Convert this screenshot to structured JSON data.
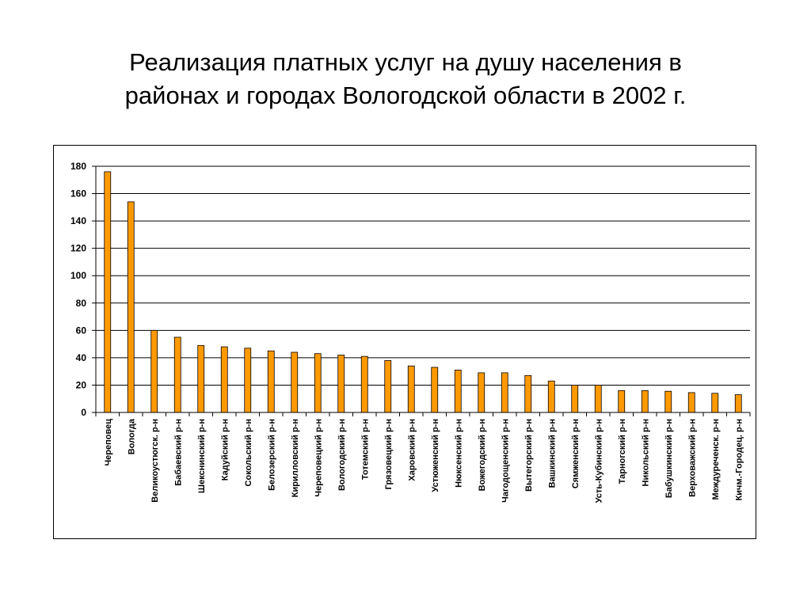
{
  "slide": {
    "title_line1": "Реализация платных услуг на душу населения в",
    "title_line2": "районах и городах Вологодской области в 2002 г."
  },
  "colors": {
    "bar_fill": "#FF9900",
    "bar_stroke": "#000000",
    "gridline": "#000000"
  },
  "chart_data": {
    "type": "bar",
    "title": "",
    "xlabel": "",
    "ylabel": "",
    "ylim": [
      0,
      180
    ],
    "yticks": [
      0,
      20,
      40,
      60,
      80,
      100,
      120,
      140,
      160,
      180
    ],
    "grid": true,
    "legend": "none",
    "categories": [
      "Череповец",
      "Вологда",
      "Великоустюгск. р-н",
      "Бабаевский р-н",
      "Шекснинский р-н",
      "Кадуйский р-н",
      "Сокольский р-н",
      "Белозерский р-н",
      "Кирилловский р-н",
      "Череповецкий р-н",
      "Вологодский р-н",
      "Тотемский р-н",
      "Грязовецкий р-н",
      "Харовский р-н",
      "Устюженский р-н",
      "Нюксенский р-н",
      "Вожегодский р-н",
      "Чагодощенский р-н",
      "Вытегорский р-н",
      "Вашкинский р-н",
      "Сямженский р-н",
      "Усть-Кубинский р-н",
      "Тарногский р-н",
      "Никольский р-н",
      "Бабушкинский р-н",
      "Верховажский р-н",
      "Междуреченск. р-н",
      "Кичм.-Городец. р-н"
    ],
    "values": [
      176,
      154,
      60,
      55,
      49,
      48,
      47,
      45,
      44,
      43,
      42,
      41,
      38,
      34,
      33,
      31,
      29,
      29,
      27,
      23,
      20,
      20,
      16,
      16,
      15.5,
      14.5,
      14,
      13
    ]
  }
}
